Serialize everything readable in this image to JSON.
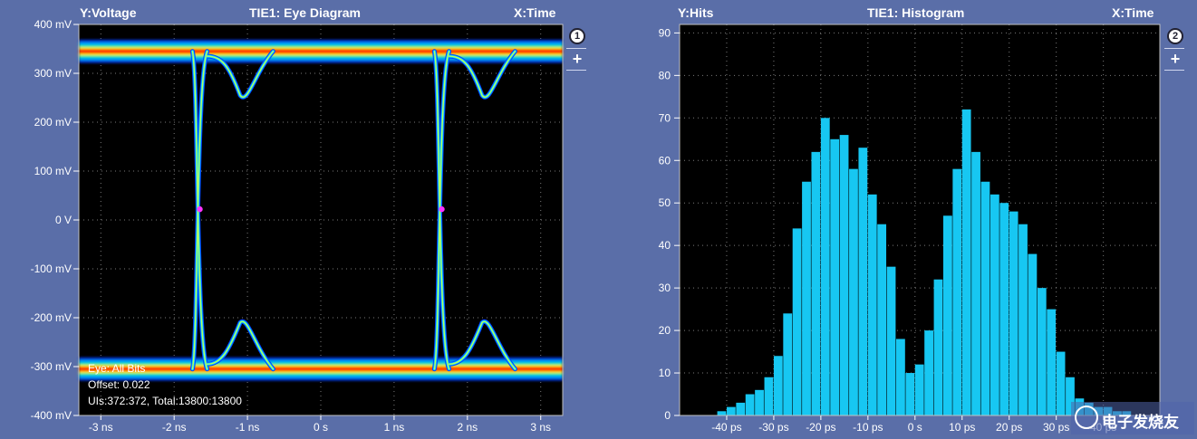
{
  "chart_data": [
    {
      "type": "heatmap",
      "title": "TIE1: Eye Diagram",
      "ylabel": "Y:Voltage",
      "xlabel": "X:Time",
      "ylim": [
        -400,
        400
      ],
      "xlim": [
        -3.3,
        3.3
      ],
      "y_ticks": [
        "400 mV",
        "300 mV",
        "200 mV",
        "100 mV",
        "0 V",
        "-100 mV",
        "-200 mV",
        "-300 mV",
        "-400 mV"
      ],
      "x_ticks": [
        "-3 ns",
        "-2 ns",
        "-1 ns",
        "0 s",
        "1 ns",
        "2 ns",
        "3 ns"
      ],
      "high_level_mV": 345,
      "low_level_mV": -305,
      "crossing_times_ns": [
        -1.65,
        1.65
      ],
      "crossing_level_mV": 22,
      "annotations": [
        "Eye: All Bits",
        "Offset: 0.022",
        "UIs:372:372, Total:13800:13800"
      ],
      "grid": true,
      "badge": "1"
    },
    {
      "type": "bar",
      "title": "TIE1: Histogram",
      "ylabel": "Y:Hits",
      "xlabel": "X:Time",
      "ylim": [
        0,
        92
      ],
      "xlim": [
        -50,
        52
      ],
      "y_ticks": [
        "90",
        "80",
        "70",
        "60",
        "50",
        "40",
        "30",
        "20",
        "10",
        "0"
      ],
      "x_ticks": [
        "-40 ps",
        "-30 ps",
        "-20 ps",
        "-10 ps",
        "0 s",
        "10 ps",
        "20 ps",
        "30 ps",
        "40 ps"
      ],
      "x": [
        -41,
        -39,
        -37,
        -35,
        -33,
        -31,
        -29,
        -27,
        -25,
        -23,
        -21,
        -19,
        -17,
        -15,
        -13,
        -11,
        -9,
        -7,
        -5,
        -3,
        -1,
        1,
        3,
        5,
        7,
        9,
        11,
        13,
        15,
        17,
        19,
        21,
        23,
        25,
        27,
        29,
        31,
        33,
        35,
        37,
        39,
        41,
        43,
        45
      ],
      "values": [
        1,
        2,
        3,
        5,
        6,
        9,
        14,
        24,
        44,
        55,
        62,
        70,
        65,
        66,
        58,
        63,
        52,
        45,
        35,
        18,
        10,
        12,
        20,
        32,
        47,
        58,
        72,
        62,
        55,
        52,
        50,
        48,
        45,
        38,
        30,
        25,
        15,
        9,
        4,
        3,
        2,
        2,
        1,
        1
      ],
      "grid": true,
      "badge": "2"
    }
  ]
}
